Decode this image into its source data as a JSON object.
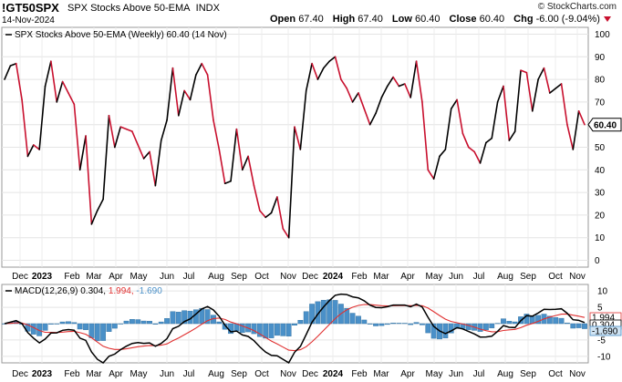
{
  "header": {
    "symbol": "!GT50SPX",
    "name": "SPX Stocks Above 50-EMA",
    "exchange": "INDX",
    "date": "14-Nov-2024",
    "brand": "© StockCharts.com",
    "open_label": "Open",
    "open": "67.40",
    "high_label": "High",
    "high": "67.40",
    "low_label": "Low",
    "low": "60.40",
    "close_label": "Close",
    "close": "60.40",
    "chg_label": "Chg",
    "chg": "-6.00 (-9.04%)",
    "down_color": "#c8102e"
  },
  "chart_data": [
    {
      "type": "line",
      "legend": "SPX Stocks Above 50-EMA (Weekly) 60.40 (14 Nov)",
      "last_value_label": "60.40",
      "ylim": [
        -3,
        103
      ],
      "yticks": [
        0,
        10,
        20,
        30,
        40,
        50,
        60,
        70,
        80,
        90,
        100
      ],
      "x_labels": [
        "Dec",
        "2023",
        "Feb",
        "Mar",
        "Apr",
        "May",
        "Jun",
        "Jul",
        "Aug",
        "Sep",
        "Oct",
        "Nov",
        "Dec",
        "2024",
        "Feb",
        "Mar",
        "Apr",
        "May",
        "Jun",
        "Jul",
        "Aug",
        "Sep",
        "Oct",
        "Nov"
      ],
      "up_color": "#000000",
      "down_color": "#c8102e",
      "values": [
        80,
        86,
        87,
        71,
        46,
        51,
        49,
        77,
        88,
        70,
        79,
        74,
        69,
        40,
        55,
        16,
        22,
        27,
        64,
        50,
        59,
        58,
        57,
        51,
        45,
        48,
        33,
        53,
        62,
        85,
        64,
        75,
        71,
        82,
        87,
        82,
        62,
        49,
        34,
        35,
        58,
        40,
        46,
        33,
        22,
        19,
        21,
        28,
        14,
        10,
        59,
        49,
        75,
        87,
        80,
        85,
        88,
        90,
        80,
        76,
        70,
        74,
        67,
        60,
        65,
        72,
        77,
        81,
        77,
        78,
        72,
        88,
        70,
        40,
        36,
        46,
        49,
        67,
        71,
        56,
        50,
        48,
        43,
        52,
        54,
        70,
        77,
        53,
        57,
        84,
        83,
        66,
        80,
        85,
        74,
        76,
        78,
        60,
        49,
        66,
        60
      ]
    },
    {
      "type": "bar",
      "legend_prefix": "MACD(12,26,9)",
      "macd": "0.304",
      "signal": "1.994",
      "histogram": "-1.690",
      "macd_color": "#000000",
      "signal_color": "#e03030",
      "hist_color": "#4a90c8",
      "ylim": [
        -12,
        12
      ],
      "yticks": [
        -10,
        -5,
        0,
        5,
        10
      ],
      "tag_signal": "1.994",
      "tag_macd": "0.304",
      "tag_hist": "-1.690",
      "x_labels": [
        "Dec",
        "2023",
        "Feb",
        "Mar",
        "Apr",
        "May",
        "Jun",
        "Jul",
        "Aug",
        "Sep",
        "Oct",
        "Nov",
        "Dec",
        "2024",
        "Feb",
        "Mar",
        "Apr",
        "May",
        "Jun",
        "Jul",
        "Aug",
        "Sep",
        "Oct",
        "Nov"
      ]
    }
  ]
}
